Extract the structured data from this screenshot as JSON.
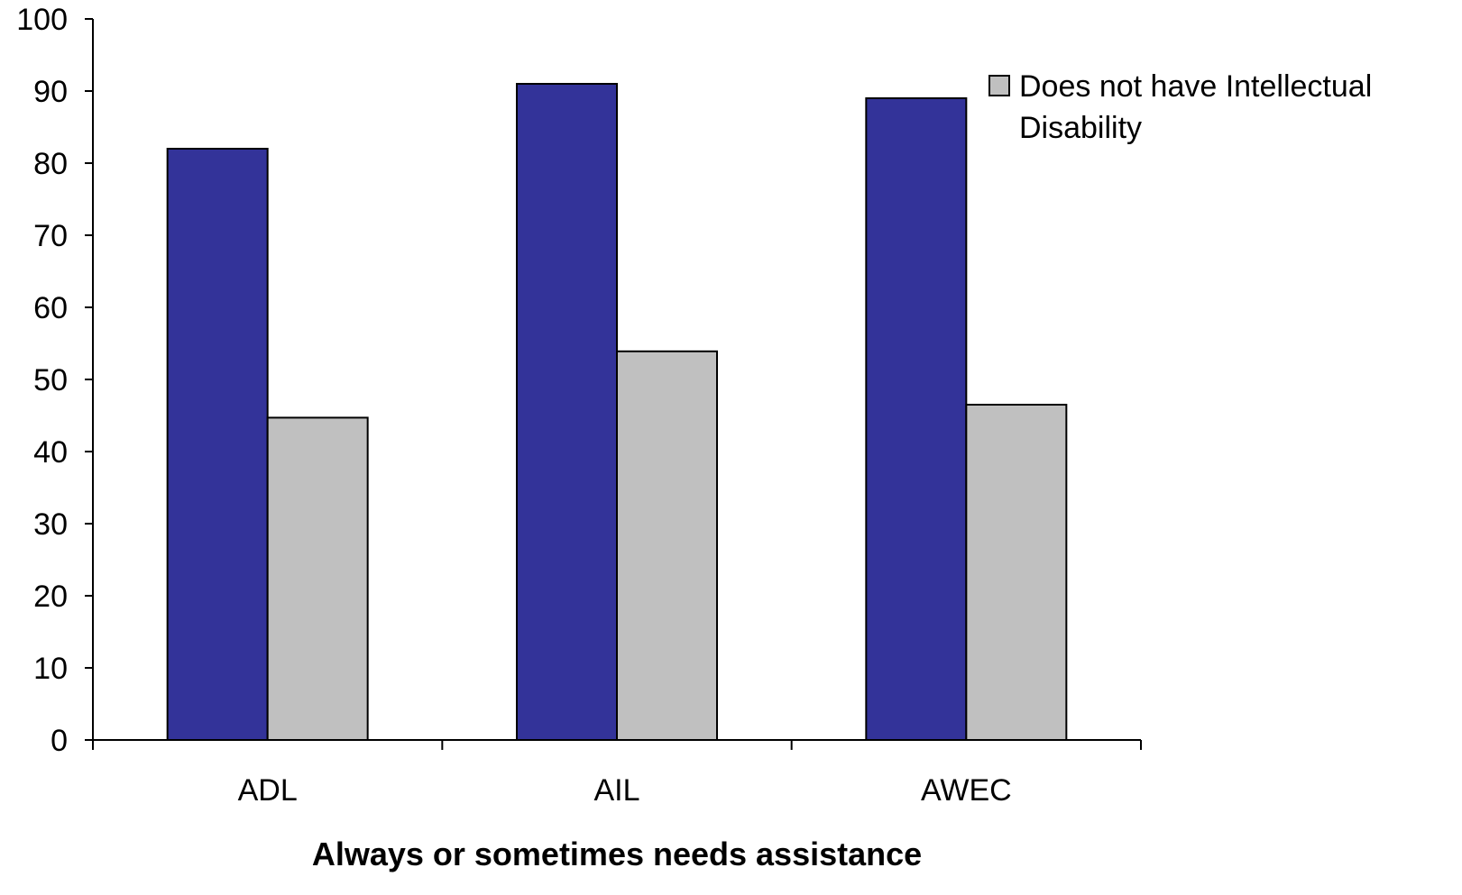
{
  "chart_data": {
    "type": "bar",
    "categories": [
      "ADL",
      "AIL",
      "AWEC"
    ],
    "series": [
      {
        "values": [
          82,
          91,
          89
        ],
        "color": "#333399"
      },
      {
        "name": "Does not have Intellectual Disability",
        "values": [
          44.7,
          53.9,
          46.5
        ],
        "color": "#c0c0c0"
      }
    ],
    "xlabel": "Always or sometimes needs assistance",
    "ylabel": "",
    "ylim": [
      0,
      100
    ],
    "yticks": [
      0,
      10,
      20,
      30,
      40,
      50,
      60,
      70,
      80,
      90,
      100
    ],
    "grid": false,
    "legend": {
      "position": "right",
      "lines": [
        "Does not have Intellectual",
        "Disability"
      ]
    }
  }
}
